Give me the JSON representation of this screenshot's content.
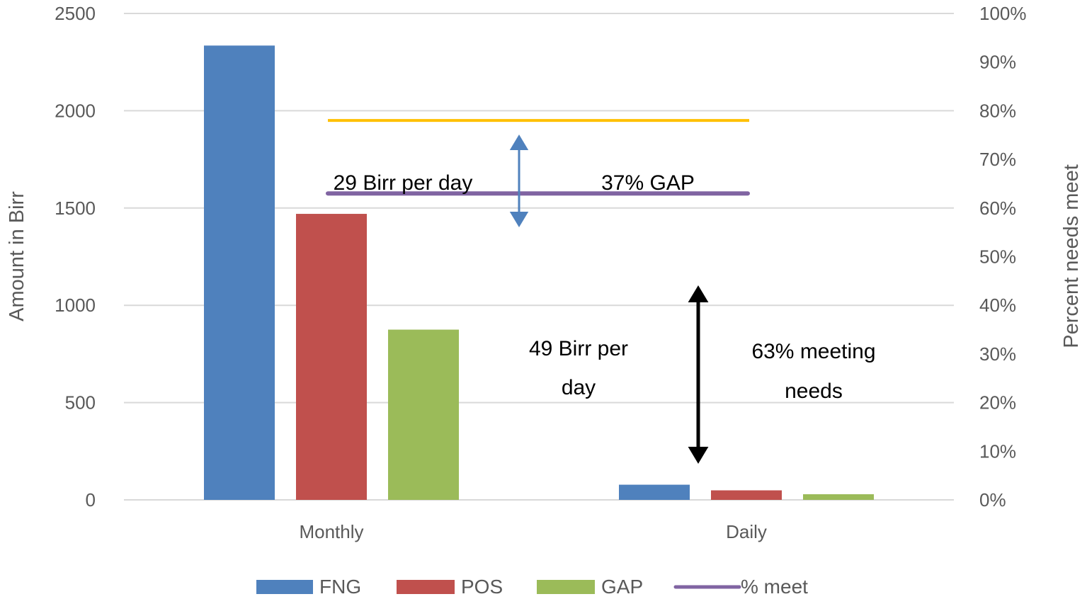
{
  "chart_data": {
    "type": "bar",
    "categories": [
      "Monthly",
      "Daily"
    ],
    "series": [
      {
        "name": "FNG",
        "type": "bar",
        "values": [
          2335,
          78
        ],
        "color": "#4F81BD"
      },
      {
        "name": "POS",
        "type": "bar",
        "values": [
          1470,
          49
        ],
        "color": "#C0504D"
      },
      {
        "name": "GAP",
        "type": "bar",
        "values": [
          875,
          29
        ],
        "color": "#9BBB59"
      },
      {
        "name": "% meet",
        "type": "line",
        "axis": "right",
        "value": 0.63,
        "color": "#8064A2"
      }
    ],
    "reference_line": {
      "value_right_axis": 0.78,
      "color": "#FFC000"
    },
    "xlabel": "",
    "ylabel": "Amount in Birr",
    "ylabel_right": "Percent needs meet",
    "ylim": [
      0,
      2500
    ],
    "ylim_right": [
      0,
      1
    ],
    "yticks": [
      "0",
      "500",
      "1000",
      "1500",
      "2000",
      "2500"
    ],
    "yticks_right": [
      "0%",
      "10%",
      "20%",
      "30%",
      "40%",
      "50%",
      "60%",
      "70%",
      "80%",
      "90%",
      "100%"
    ],
    "grid": true,
    "legend_position": "bottom",
    "annotations": {
      "gap_per_day": "29 Birr per day",
      "gap_pct": "37% GAP",
      "pos_per_day_line1": "49 Birr per",
      "pos_per_day_line2": "day",
      "meet_line1": "63% meeting",
      "meet_line2": "needs"
    },
    "arrow_colors": {
      "gap": "#4F81BD",
      "meet": "#000000"
    }
  }
}
